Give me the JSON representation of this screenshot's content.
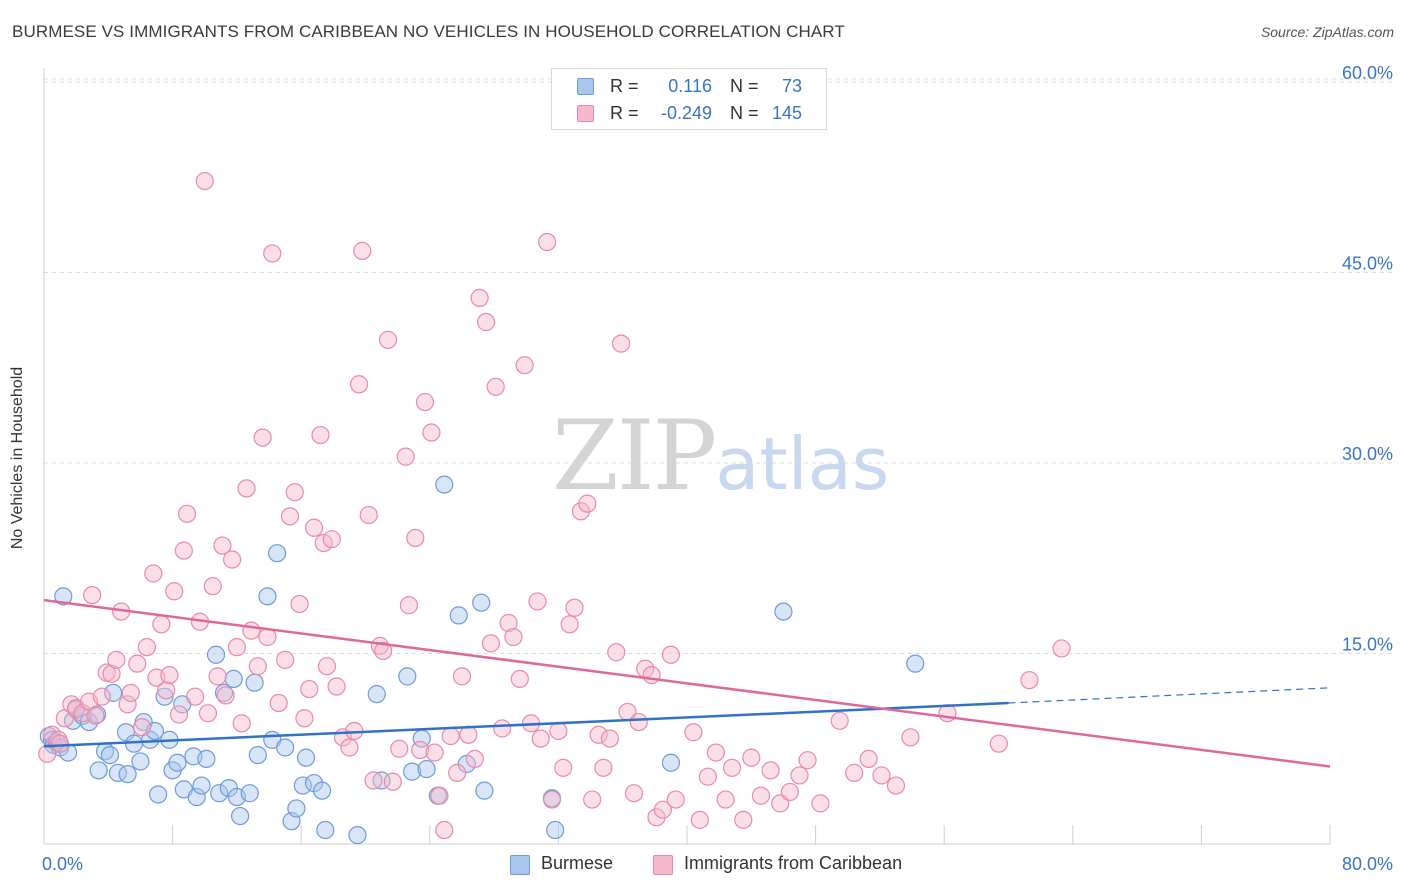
{
  "header": {
    "title": "BURMESE VS IMMIGRANTS FROM CARIBBEAN NO VEHICLES IN HOUSEHOLD CORRELATION CHART",
    "source": "Source: ZipAtlas.com"
  },
  "watermark": {
    "zip": "ZIP",
    "atlas": "atlas"
  },
  "colors": {
    "blue_fill": "#a9c6ee",
    "blue_stroke": "#6f9bd8",
    "blue_line": "#2f72c8",
    "pink_fill": "#f4b9cb",
    "pink_stroke": "#e98aa8",
    "pink_line": "#e0679a",
    "tick_label": "#3a74c4",
    "grid": "#dcdcdc"
  },
  "legend": {
    "rows": [
      {
        "r_label": "R =",
        "r_value": "0.116",
        "n_label": "N =",
        "n_value": "73",
        "color": "blue"
      },
      {
        "r_label": "R =",
        "r_value": "-0.249",
        "n_label": "N =",
        "n_value": "145",
        "color": "pink"
      }
    ],
    "bottom": [
      {
        "label": "Burmese",
        "color": "blue"
      },
      {
        "label": "Immigrants from Caribbean",
        "color": "pink"
      }
    ]
  },
  "chart_data": {
    "type": "scatter",
    "ylabel": "No Vehicles in Household",
    "xlim": [
      0,
      80
    ],
    "ylim": [
      0,
      60
    ],
    "x_tick_labels": [
      {
        "value": 0,
        "label": "0.0%"
      },
      {
        "value": 80,
        "label": "80.0%"
      }
    ],
    "y_tick_labels": [
      {
        "value": 15,
        "label": "15.0%"
      },
      {
        "value": 30,
        "label": "30.0%"
      },
      {
        "value": 45,
        "label": "45.0%"
      },
      {
        "value": 60,
        "label": "60.0%"
      }
    ],
    "x_minor_ticks": [
      8,
      16,
      24,
      32,
      40,
      48,
      56,
      64,
      72,
      80
    ],
    "grid": true,
    "series": [
      {
        "name": "Burmese",
        "color": "blue",
        "trend": {
          "x0": 0,
          "y0": 7.7,
          "x1": 60,
          "y1": 11.1,
          "dash_to_x": 80,
          "dash_to_y": 12.3
        },
        "points": [
          [
            0.3,
            8.5
          ],
          [
            0.5,
            8.2
          ],
          [
            0.6,
            7.8
          ],
          [
            0.8,
            8.0
          ],
          [
            1.0,
            7.6
          ],
          [
            1.2,
            19.5
          ],
          [
            1.5,
            7.2
          ],
          [
            1.8,
            9.7
          ],
          [
            2.0,
            10.6
          ],
          [
            2.4,
            10.1
          ],
          [
            2.8,
            9.6
          ],
          [
            3.3,
            10.2
          ],
          [
            3.4,
            5.8
          ],
          [
            3.8,
            7.3
          ],
          [
            4.1,
            7.0
          ],
          [
            4.3,
            11.9
          ],
          [
            4.6,
            5.6
          ],
          [
            5.1,
            8.8
          ],
          [
            5.2,
            5.5
          ],
          [
            5.6,
            7.9
          ],
          [
            6.0,
            6.5
          ],
          [
            6.2,
            9.6
          ],
          [
            6.6,
            8.2
          ],
          [
            6.9,
            8.9
          ],
          [
            7.1,
            3.9
          ],
          [
            7.5,
            11.6
          ],
          [
            7.8,
            8.2
          ],
          [
            8.0,
            5.8
          ],
          [
            8.3,
            6.4
          ],
          [
            8.6,
            11.0
          ],
          [
            8.7,
            4.3
          ],
          [
            9.3,
            6.9
          ],
          [
            9.5,
            3.7
          ],
          [
            9.8,
            4.6
          ],
          [
            10.1,
            6.7
          ],
          [
            10.7,
            14.9
          ],
          [
            10.9,
            4.0
          ],
          [
            11.2,
            11.9
          ],
          [
            11.5,
            4.4
          ],
          [
            11.8,
            13.0
          ],
          [
            12.0,
            3.7
          ],
          [
            12.2,
            2.2
          ],
          [
            12.8,
            4.0
          ],
          [
            13.1,
            12.7
          ],
          [
            13.3,
            7.0
          ],
          [
            13.9,
            19.5
          ],
          [
            14.2,
            8.2
          ],
          [
            14.5,
            22.9
          ],
          [
            15.0,
            7.6
          ],
          [
            15.4,
            1.8
          ],
          [
            15.7,
            2.8
          ],
          [
            16.1,
            4.6
          ],
          [
            16.3,
            6.8
          ],
          [
            16.8,
            4.8
          ],
          [
            17.3,
            4.2
          ],
          [
            17.5,
            1.1
          ],
          [
            19.5,
            0.7
          ],
          [
            20.7,
            11.8
          ],
          [
            21.0,
            5.0
          ],
          [
            22.6,
            13.2
          ],
          [
            22.9,
            5.7
          ],
          [
            23.5,
            8.3
          ],
          [
            23.8,
            5.9
          ],
          [
            24.5,
            3.8
          ],
          [
            24.9,
            28.3
          ],
          [
            25.8,
            18.0
          ],
          [
            26.3,
            6.3
          ],
          [
            27.2,
            19.0
          ],
          [
            27.4,
            4.2
          ],
          [
            31.6,
            3.6
          ],
          [
            31.8,
            1.1
          ],
          [
            39.0,
            6.4
          ],
          [
            46.0,
            18.3
          ],
          [
            54.2,
            14.2
          ]
        ]
      },
      {
        "name": "Immigrants from Caribbean",
        "color": "pink",
        "trend": {
          "x0": 0,
          "y0": 19.2,
          "x1": 80,
          "y1": 6.1
        },
        "points": [
          [
            0.2,
            7.1
          ],
          [
            0.5,
            8.6
          ],
          [
            0.9,
            8.2
          ],
          [
            1.0,
            7.9
          ],
          [
            1.3,
            9.9
          ],
          [
            1.7,
            11.0
          ],
          [
            2.0,
            10.7
          ],
          [
            2.4,
            10.3
          ],
          [
            2.8,
            11.2
          ],
          [
            3.0,
            19.6
          ],
          [
            3.2,
            10.1
          ],
          [
            3.6,
            11.6
          ],
          [
            3.9,
            13.5
          ],
          [
            4.2,
            13.4
          ],
          [
            4.5,
            14.5
          ],
          [
            4.8,
            18.3
          ],
          [
            5.2,
            11.0
          ],
          [
            5.4,
            11.9
          ],
          [
            5.8,
            14.2
          ],
          [
            6.1,
            9.2
          ],
          [
            6.4,
            15.5
          ],
          [
            6.8,
            21.3
          ],
          [
            7.0,
            13.1
          ],
          [
            7.3,
            17.3
          ],
          [
            7.6,
            12.1
          ],
          [
            7.8,
            13.3
          ],
          [
            8.1,
            19.9
          ],
          [
            8.4,
            10.2
          ],
          [
            8.7,
            23.1
          ],
          [
            8.9,
            26.0
          ],
          [
            9.4,
            11.6
          ],
          [
            9.7,
            17.5
          ],
          [
            10.0,
            52.2
          ],
          [
            10.2,
            10.3
          ],
          [
            10.5,
            20.3
          ],
          [
            10.8,
            13.2
          ],
          [
            11.1,
            23.5
          ],
          [
            11.3,
            11.7
          ],
          [
            11.7,
            22.4
          ],
          [
            12.0,
            15.5
          ],
          [
            12.3,
            9.5
          ],
          [
            12.6,
            28.0
          ],
          [
            12.9,
            16.8
          ],
          [
            13.3,
            14.0
          ],
          [
            13.6,
            32.0
          ],
          [
            13.9,
            16.3
          ],
          [
            14.2,
            46.5
          ],
          [
            14.6,
            11.1
          ],
          [
            15.0,
            14.5
          ],
          [
            15.3,
            25.8
          ],
          [
            15.6,
            27.7
          ],
          [
            15.9,
            18.9
          ],
          [
            16.2,
            9.9
          ],
          [
            16.5,
            12.2
          ],
          [
            16.8,
            24.9
          ],
          [
            17.2,
            32.2
          ],
          [
            17.4,
            23.7
          ],
          [
            17.6,
            14.0
          ],
          [
            17.9,
            24.0
          ],
          [
            18.2,
            12.4
          ],
          [
            18.6,
            8.4
          ],
          [
            19.0,
            7.6
          ],
          [
            19.3,
            8.9
          ],
          [
            19.6,
            36.2
          ],
          [
            19.8,
            46.7
          ],
          [
            20.2,
            25.9
          ],
          [
            20.5,
            5.0
          ],
          [
            20.9,
            15.6
          ],
          [
            21.1,
            15.2
          ],
          [
            21.4,
            39.7
          ],
          [
            21.7,
            4.9
          ],
          [
            22.1,
            7.5
          ],
          [
            22.5,
            30.5
          ],
          [
            22.7,
            18.8
          ],
          [
            23.1,
            24.1
          ],
          [
            23.4,
            7.4
          ],
          [
            23.7,
            34.8
          ],
          [
            24.1,
            32.4
          ],
          [
            24.3,
            7.2
          ],
          [
            24.6,
            3.8
          ],
          [
            24.9,
            1.1
          ],
          [
            25.3,
            8.5
          ],
          [
            25.7,
            5.6
          ],
          [
            26.0,
            13.2
          ],
          [
            26.4,
            8.6
          ],
          [
            26.8,
            6.7
          ],
          [
            27.1,
            43.0
          ],
          [
            27.5,
            41.1
          ],
          [
            27.8,
            15.8
          ],
          [
            28.1,
            36.0
          ],
          [
            28.5,
            9.1
          ],
          [
            28.9,
            17.4
          ],
          [
            29.2,
            16.3
          ],
          [
            29.6,
            13.0
          ],
          [
            29.9,
            37.7
          ],
          [
            30.3,
            9.5
          ],
          [
            30.7,
            19.1
          ],
          [
            30.9,
            8.3
          ],
          [
            31.3,
            47.4
          ],
          [
            31.6,
            3.5
          ],
          [
            32.0,
            8.9
          ],
          [
            32.3,
            6.0
          ],
          [
            32.7,
            17.3
          ],
          [
            33.0,
            18.6
          ],
          [
            33.4,
            26.2
          ],
          [
            33.8,
            26.8
          ],
          [
            34.1,
            3.5
          ],
          [
            34.5,
            8.6
          ],
          [
            34.8,
            6.0
          ],
          [
            35.2,
            8.3
          ],
          [
            35.6,
            15.1
          ],
          [
            35.9,
            39.4
          ],
          [
            36.3,
            10.4
          ],
          [
            36.7,
            4.0
          ],
          [
            37.0,
            9.6
          ],
          [
            37.4,
            13.8
          ],
          [
            37.8,
            13.3
          ],
          [
            38.1,
            2.1
          ],
          [
            38.5,
            2.7
          ],
          [
            39.0,
            14.9
          ],
          [
            39.3,
            3.5
          ],
          [
            40.4,
            8.8
          ],
          [
            40.8,
            1.9
          ],
          [
            41.3,
            5.3
          ],
          [
            41.8,
            7.2
          ],
          [
            42.4,
            3.5
          ],
          [
            42.8,
            6.0
          ],
          [
            43.5,
            1.9
          ],
          [
            44.0,
            6.8
          ],
          [
            44.6,
            3.8
          ],
          [
            45.2,
            5.8
          ],
          [
            45.8,
            3.2
          ],
          [
            46.4,
            4.1
          ],
          [
            47.0,
            5.4
          ],
          [
            47.5,
            6.6
          ],
          [
            48.3,
            3.2
          ],
          [
            49.5,
            9.7
          ],
          [
            50.4,
            5.6
          ],
          [
            51.3,
            6.7
          ],
          [
            52.1,
            5.4
          ],
          [
            53.0,
            4.6
          ],
          [
            53.9,
            8.4
          ],
          [
            56.2,
            10.3
          ],
          [
            59.4,
            7.9
          ],
          [
            61.3,
            12.9
          ],
          [
            63.3,
            15.4
          ]
        ]
      }
    ]
  }
}
